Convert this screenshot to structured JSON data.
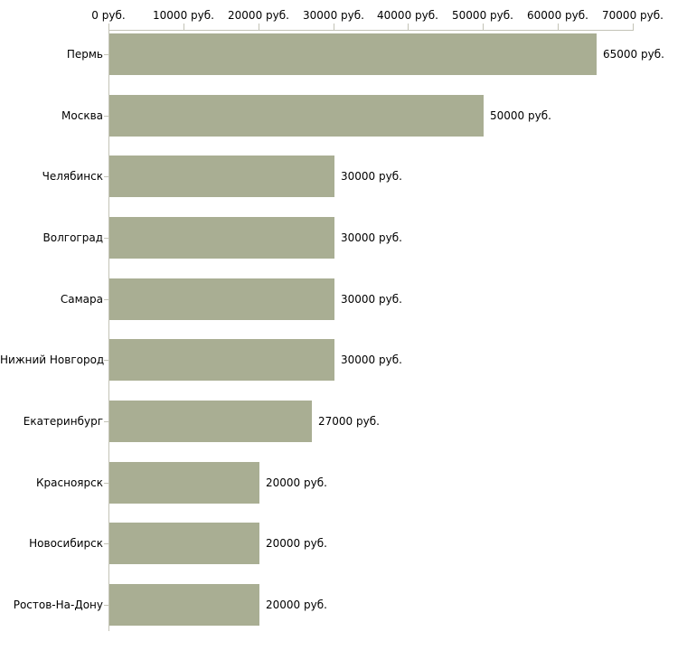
{
  "chart_data": {
    "type": "bar",
    "orientation": "horizontal",
    "title": "",
    "xlabel": "",
    "ylabel": "",
    "categories": [
      "Пермь",
      "Москва",
      "Челябинск",
      "Волгоград",
      "Самара",
      "Нижний Новгород",
      "Екатеринбург",
      "Красноярск",
      "Новосибирск",
      "Ростов-На-Дону"
    ],
    "values": [
      65000,
      50000,
      30000,
      30000,
      30000,
      30000,
      27000,
      20000,
      20000,
      20000
    ],
    "value_labels": [
      "65000 руб.",
      "50000 руб.",
      "30000 руб.",
      "30000 руб.",
      "30000 руб.",
      "30000 руб.",
      "27000 руб.",
      "20000 руб.",
      "20000 руб.",
      "20000 руб."
    ],
    "x_axis": {
      "position": "top",
      "min": 0,
      "max": 70000,
      "ticks": [
        0,
        10000,
        20000,
        30000,
        40000,
        50000,
        60000,
        70000
      ],
      "tick_labels": [
        "0 руб.",
        "10000 руб.",
        "20000 руб.",
        "30000 руб.",
        "40000 руб.",
        "50000 руб.",
        "60000 руб.",
        "70000 руб."
      ]
    },
    "grid": false,
    "legend": false,
    "colors": {
      "bar_fill": "#a9ae93",
      "axis_line": "#c3c3b6",
      "tick_mark": "#c3c3b6",
      "text": "#000000",
      "background": "#ffffff"
    }
  }
}
